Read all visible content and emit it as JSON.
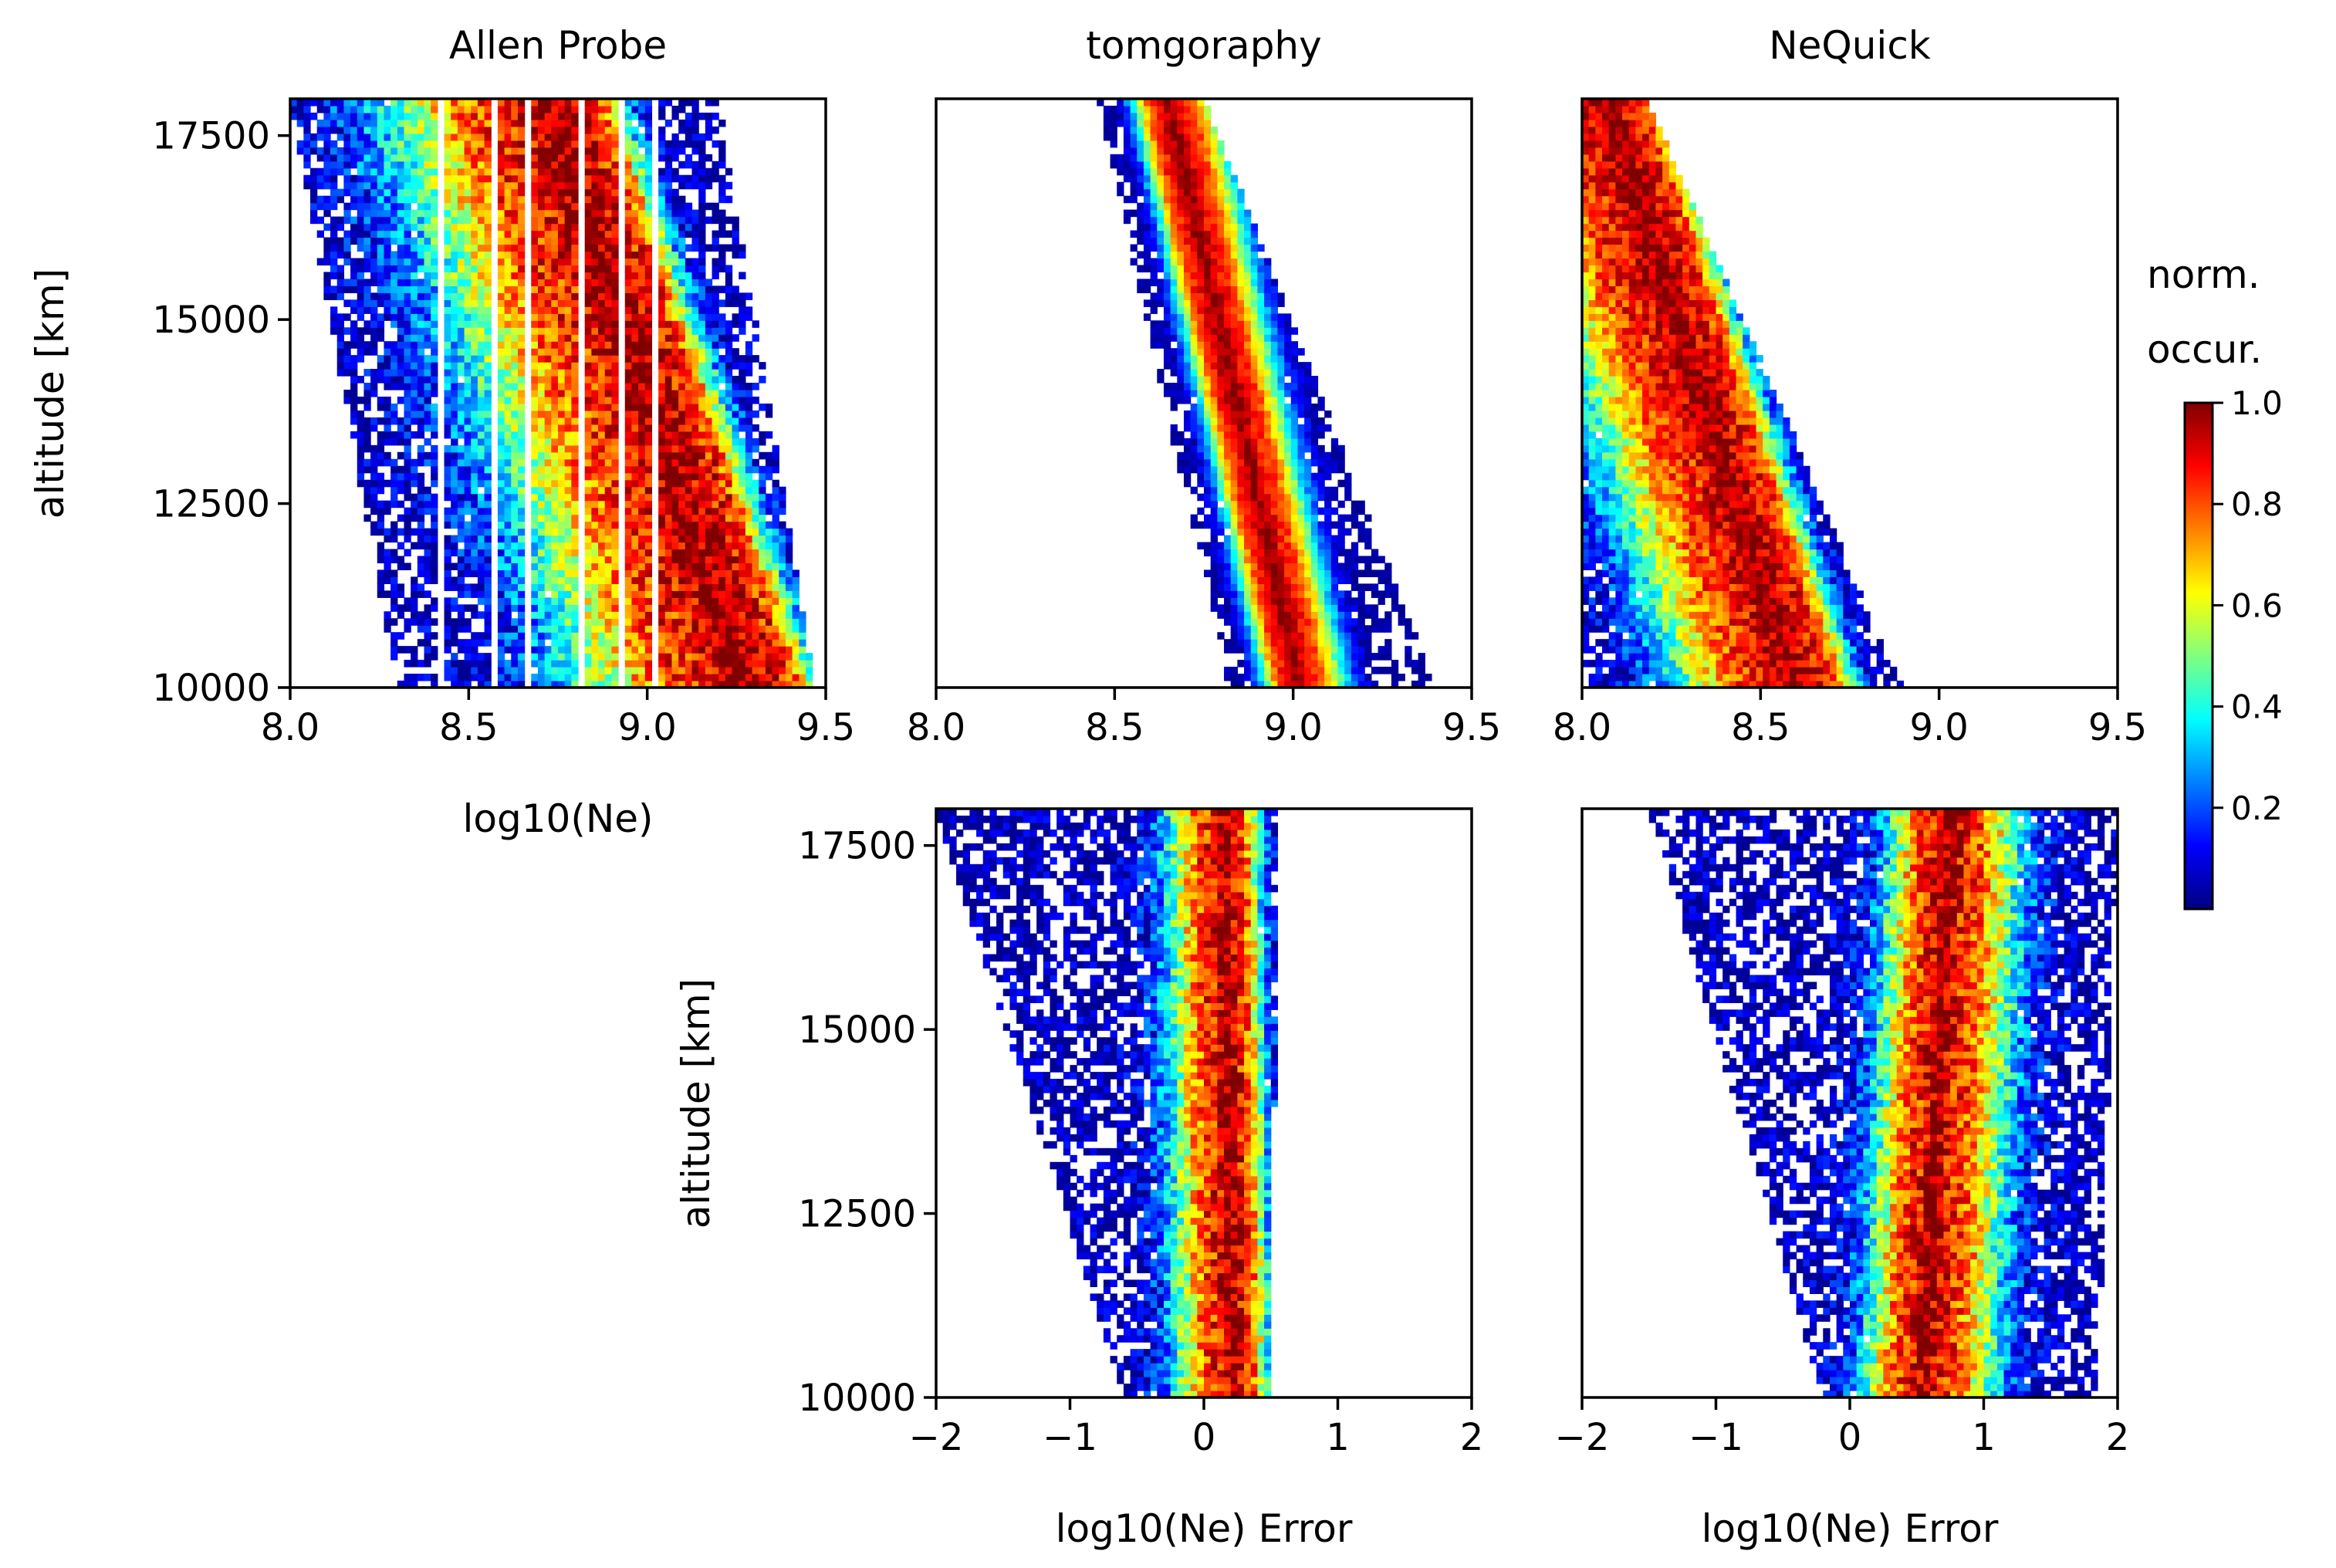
{
  "colorbar": {
    "title_line1": "norm.",
    "title_line2": "occur.",
    "ticks": [
      {
        "value": 0.2,
        "label": "0.2"
      },
      {
        "value": 0.4,
        "label": "0.4"
      },
      {
        "value": 0.6,
        "label": "0.6"
      },
      {
        "value": 0.8,
        "label": "0.8"
      },
      {
        "value": 1.0,
        "label": "1.0"
      }
    ],
    "range": [
      0.0,
      1.0
    ],
    "colormap": "jet",
    "colormap_stops": [
      "#000080",
      "#0000ff",
      "#0080ff",
      "#00ffff",
      "#80ff80",
      "#ffff00",
      "#ff8000",
      "#ff0000",
      "#800000"
    ]
  },
  "chart_data": [
    {
      "id": "allen-probe",
      "type": "heatmap",
      "title": "Allen Probe",
      "xlabel": "log10(Ne)",
      "ylabel": "altitude [km]",
      "xlim": [
        8.0,
        9.5
      ],
      "ylim": [
        10000,
        18000
      ],
      "xticks": [
        {
          "value": 8.0,
          "label": "8.0"
        },
        {
          "value": 8.5,
          "label": "8.5"
        },
        {
          "value": 9.0,
          "label": "9.0"
        },
        {
          "value": 9.5,
          "label": "9.5"
        }
      ],
      "yticks": [
        {
          "value": 10000,
          "label": "10000"
        },
        {
          "value": 12500,
          "label": "12500"
        },
        {
          "value": 15000,
          "label": "15000"
        },
        {
          "value": 17500,
          "label": "17500"
        }
      ],
      "ridge": {
        "x_at_ymin": 9.27,
        "x_at_ymax": 8.72
      },
      "core_width": 0.12,
      "spread_low": 0.85,
      "spread_high": 0.22,
      "edge_low": {
        "x_at_ymin": 8.3,
        "x_at_ymax": 8.0
      },
      "edge_high": {
        "x_at_ymin": 9.47,
        "x_at_ymax": 9.2
      },
      "gap_columns": [
        8.15,
        8.3,
        8.42,
        8.58,
        8.66,
        8.82,
        8.92,
        9.02
      ],
      "noise": 0.3
    },
    {
      "id": "tomography",
      "type": "heatmap",
      "title": "tomgoraphy",
      "xlabel": "",
      "ylabel": "",
      "xlim": [
        8.0,
        9.5
      ],
      "ylim": [
        10000,
        18000
      ],
      "xticks": [
        {
          "value": 8.0,
          "label": "8.0"
        },
        {
          "value": 8.5,
          "label": "8.5"
        },
        {
          "value": 9.0,
          "label": "9.0"
        },
        {
          "value": 9.5,
          "label": "9.5"
        }
      ],
      "yticks": [],
      "ridge": {
        "x_at_ymin": 9.02,
        "x_at_ymax": 8.65
      },
      "core_width": 0.04,
      "spread_low": 0.15,
      "spread_high": 0.22,
      "edge_low": {
        "x_at_ymin": 8.82,
        "x_at_ymax": 8.45
      },
      "edge_high": {
        "x_at_ymin": 9.4,
        "x_at_ymax": 8.75
      },
      "gap_columns": [],
      "noise": 0.12
    },
    {
      "id": "nequick",
      "type": "heatmap",
      "title": "NeQuick",
      "xlabel": "",
      "ylabel": "",
      "xlim": [
        8.0,
        9.5
      ],
      "ylim": [
        10000,
        18000
      ],
      "xticks": [
        {
          "value": 8.0,
          "label": "8.0"
        },
        {
          "value": 8.5,
          "label": "8.5"
        },
        {
          "value": 9.0,
          "label": "9.0"
        },
        {
          "value": 9.5,
          "label": "9.5"
        }
      ],
      "yticks": [],
      "ridge": {
        "x_at_ymin": 8.6,
        "x_at_ymax": 8.06
      },
      "core_width": 0.09,
      "spread_low": 0.6,
      "spread_high": 0.2,
      "edge_low": {
        "x_at_ymin": 8.0,
        "x_at_ymax": 8.0
      },
      "edge_high": {
        "x_at_ymin": 8.9,
        "x_at_ymax": 8.18
      },
      "gap_columns": [],
      "noise": 0.25
    },
    {
      "id": "tomography-error",
      "type": "heatmap",
      "title": "",
      "xlabel": "log10(Ne) Error",
      "ylabel": "altitude [km]",
      "xlim": [
        -2,
        2
      ],
      "ylim": [
        10000,
        18000
      ],
      "xticks": [
        {
          "value": -2,
          "label": "−2"
        },
        {
          "value": -1,
          "label": "−1"
        },
        {
          "value": 0,
          "label": "0"
        },
        {
          "value": 1,
          "label": "1"
        },
        {
          "value": 2,
          "label": "2"
        }
      ],
      "yticks": [
        {
          "value": 10000,
          "label": "10000"
        },
        {
          "value": 12500,
          "label": "12500"
        },
        {
          "value": 15000,
          "label": "15000"
        },
        {
          "value": 17500,
          "label": "17500"
        }
      ],
      "ridge": {
        "x_at_ymin": 0.22,
        "x_at_ymax": 0.15
      },
      "core_width": 0.1,
      "spread_low": 0.8,
      "spread_high": 0.4,
      "edge_low": {
        "x_at_ymin": -0.6,
        "x_at_ymax": -2.0
      },
      "edge_high": {
        "x_at_ymin": 0.5,
        "x_at_ymax": 0.55
      },
      "gap_columns": [],
      "noise": 0.3
    },
    {
      "id": "nequick-error",
      "type": "heatmap",
      "title": "",
      "xlabel": "log10(Ne) Error",
      "ylabel": "",
      "xlim": [
        -2,
        2
      ],
      "ylim": [
        10000,
        18000
      ],
      "xticks": [
        {
          "value": -2,
          "label": "−2"
        },
        {
          "value": -1,
          "label": "−1"
        },
        {
          "value": 0,
          "label": "0"
        },
        {
          "value": 1,
          "label": "1"
        },
        {
          "value": 2,
          "label": "2"
        }
      ],
      "yticks": [],
      "ridge": {
        "x_at_ymin": 0.55,
        "x_at_ymax": 0.75
      },
      "core_width": 0.12,
      "spread_low": 0.8,
      "spread_high": 1.0,
      "edge_low": {
        "x_at_ymin": -0.2,
        "x_at_ymax": -1.5
      },
      "edge_high": {
        "x_at_ymin": 1.85,
        "x_at_ymax": 2.0
      },
      "gap_columns": [],
      "noise": 0.3
    }
  ]
}
